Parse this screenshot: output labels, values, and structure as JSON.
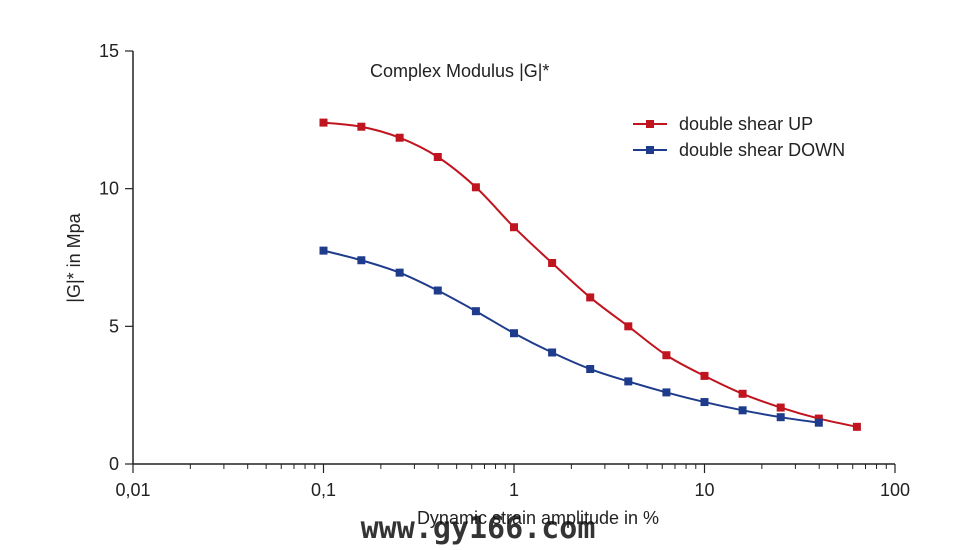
{
  "chart_data": {
    "type": "line",
    "title": "Complex Modulus  |G|*",
    "xlabel": "Dynamic strain amplitude in %",
    "ylabel": "|G|* in Mpa",
    "x_scale": "log",
    "xlim": [
      0.01,
      100
    ],
    "ylim": [
      0,
      15
    ],
    "x_ticks": [
      0.01,
      0.1,
      1,
      10,
      100
    ],
    "x_tick_labels": [
      "0,01",
      "0,1",
      "1",
      "10",
      "100"
    ],
    "y_ticks": [
      0,
      5,
      10,
      15
    ],
    "y_tick_labels": [
      "0",
      "5",
      "10",
      "15"
    ],
    "grid": false,
    "legend_position": "top-right",
    "series": [
      {
        "name": "double shear UP",
        "color": "#c0141e",
        "marker": "square",
        "x": [
          0.1,
          0.158,
          0.251,
          0.398,
          0.631,
          1.0,
          1.585,
          2.512,
          3.981,
          6.31,
          10.0,
          15.85,
          25.12,
          39.81,
          63.1
        ],
        "y": [
          12.4,
          12.25,
          11.85,
          11.15,
          10.05,
          8.6,
          7.3,
          6.05,
          5.0,
          3.95,
          3.2,
          2.55,
          2.05,
          1.65,
          1.35
        ]
      },
      {
        "name": "double shear DOWN",
        "color": "#1f3c8c",
        "marker": "square",
        "x": [
          0.1,
          0.158,
          0.251,
          0.398,
          0.631,
          1.0,
          1.585,
          2.512,
          3.981,
          6.31,
          10.0,
          15.85,
          25.12,
          39.81
        ],
        "y": [
          7.75,
          7.4,
          6.95,
          6.3,
          5.55,
          4.75,
          4.05,
          3.45,
          3.0,
          2.6,
          2.25,
          1.95,
          1.7,
          1.5
        ]
      }
    ]
  },
  "watermark": "www.gy166.com"
}
